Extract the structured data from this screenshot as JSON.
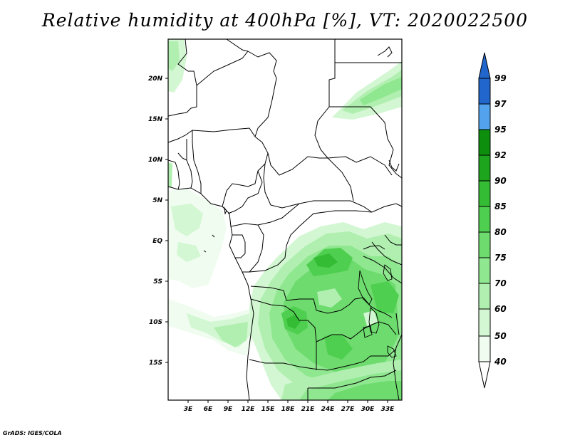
{
  "title": "Relative humidity at 400hPa [%], VT: 2020022500",
  "credit": "GrADS: IGES/COLA",
  "map": {
    "lat_ticks": [
      "20N",
      "15N",
      "10N",
      "5N",
      "EQ",
      "5S",
      "10S",
      "15S"
    ],
    "lon_ticks": [
      "3E",
      "6E",
      "9E",
      "12E",
      "15E",
      "18E",
      "21E",
      "24E",
      "27E",
      "30E",
      "33E"
    ]
  },
  "colorbar": {
    "levels": [
      "99",
      "97",
      "95",
      "92",
      "90",
      "85",
      "80",
      "75",
      "70",
      "60",
      "50",
      "40"
    ],
    "colors": [
      "#2166cc",
      "#3a86e0",
      "#52a2ee",
      "#0d8f0d",
      "#1ea51e",
      "#34bc34",
      "#4fcf4f",
      "#6ddb6d",
      "#8fe78f",
      "#b1efb1",
      "#d2f7d2",
      "#f0fcf0"
    ]
  }
}
